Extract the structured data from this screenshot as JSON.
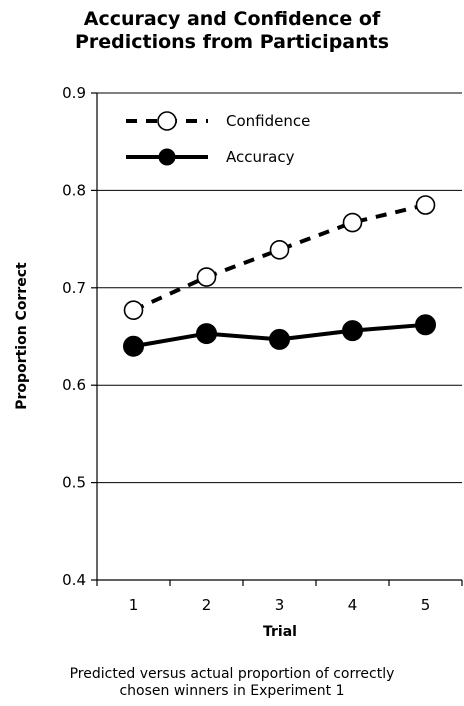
{
  "chart_data": {
    "type": "line",
    "title_lines": [
      "Accuracy and Confidence of",
      "Predictions from Participants"
    ],
    "xlabel": "Trial",
    "ylabel": "Proportion Correct",
    "categories": [
      "1",
      "2",
      "3",
      "4",
      "5"
    ],
    "x": [
      1,
      2,
      3,
      4,
      5
    ],
    "xlim": [
      0.5,
      5.5
    ],
    "ylim": [
      0.4,
      0.9
    ],
    "yticks": [
      "0.4",
      "0.5",
      "0.6",
      "0.7",
      "0.8",
      "0.9"
    ],
    "grid": "horizontal",
    "legend_position": "top-left",
    "series": [
      {
        "name": "Confidence",
        "values": [
          0.677,
          0.711,
          0.739,
          0.767,
          0.785
        ],
        "line_style": "dashed",
        "marker": "open-circle",
        "color": "#000000"
      },
      {
        "name": "Accuracy",
        "values": [
          0.64,
          0.653,
          0.647,
          0.656,
          0.662
        ],
        "line_style": "solid",
        "marker": "filled-circle",
        "color": "#000000"
      }
    ],
    "caption_lines": [
      "Predicted versus actual proportion of correctly",
      "chosen winners in Experiment 1"
    ]
  }
}
